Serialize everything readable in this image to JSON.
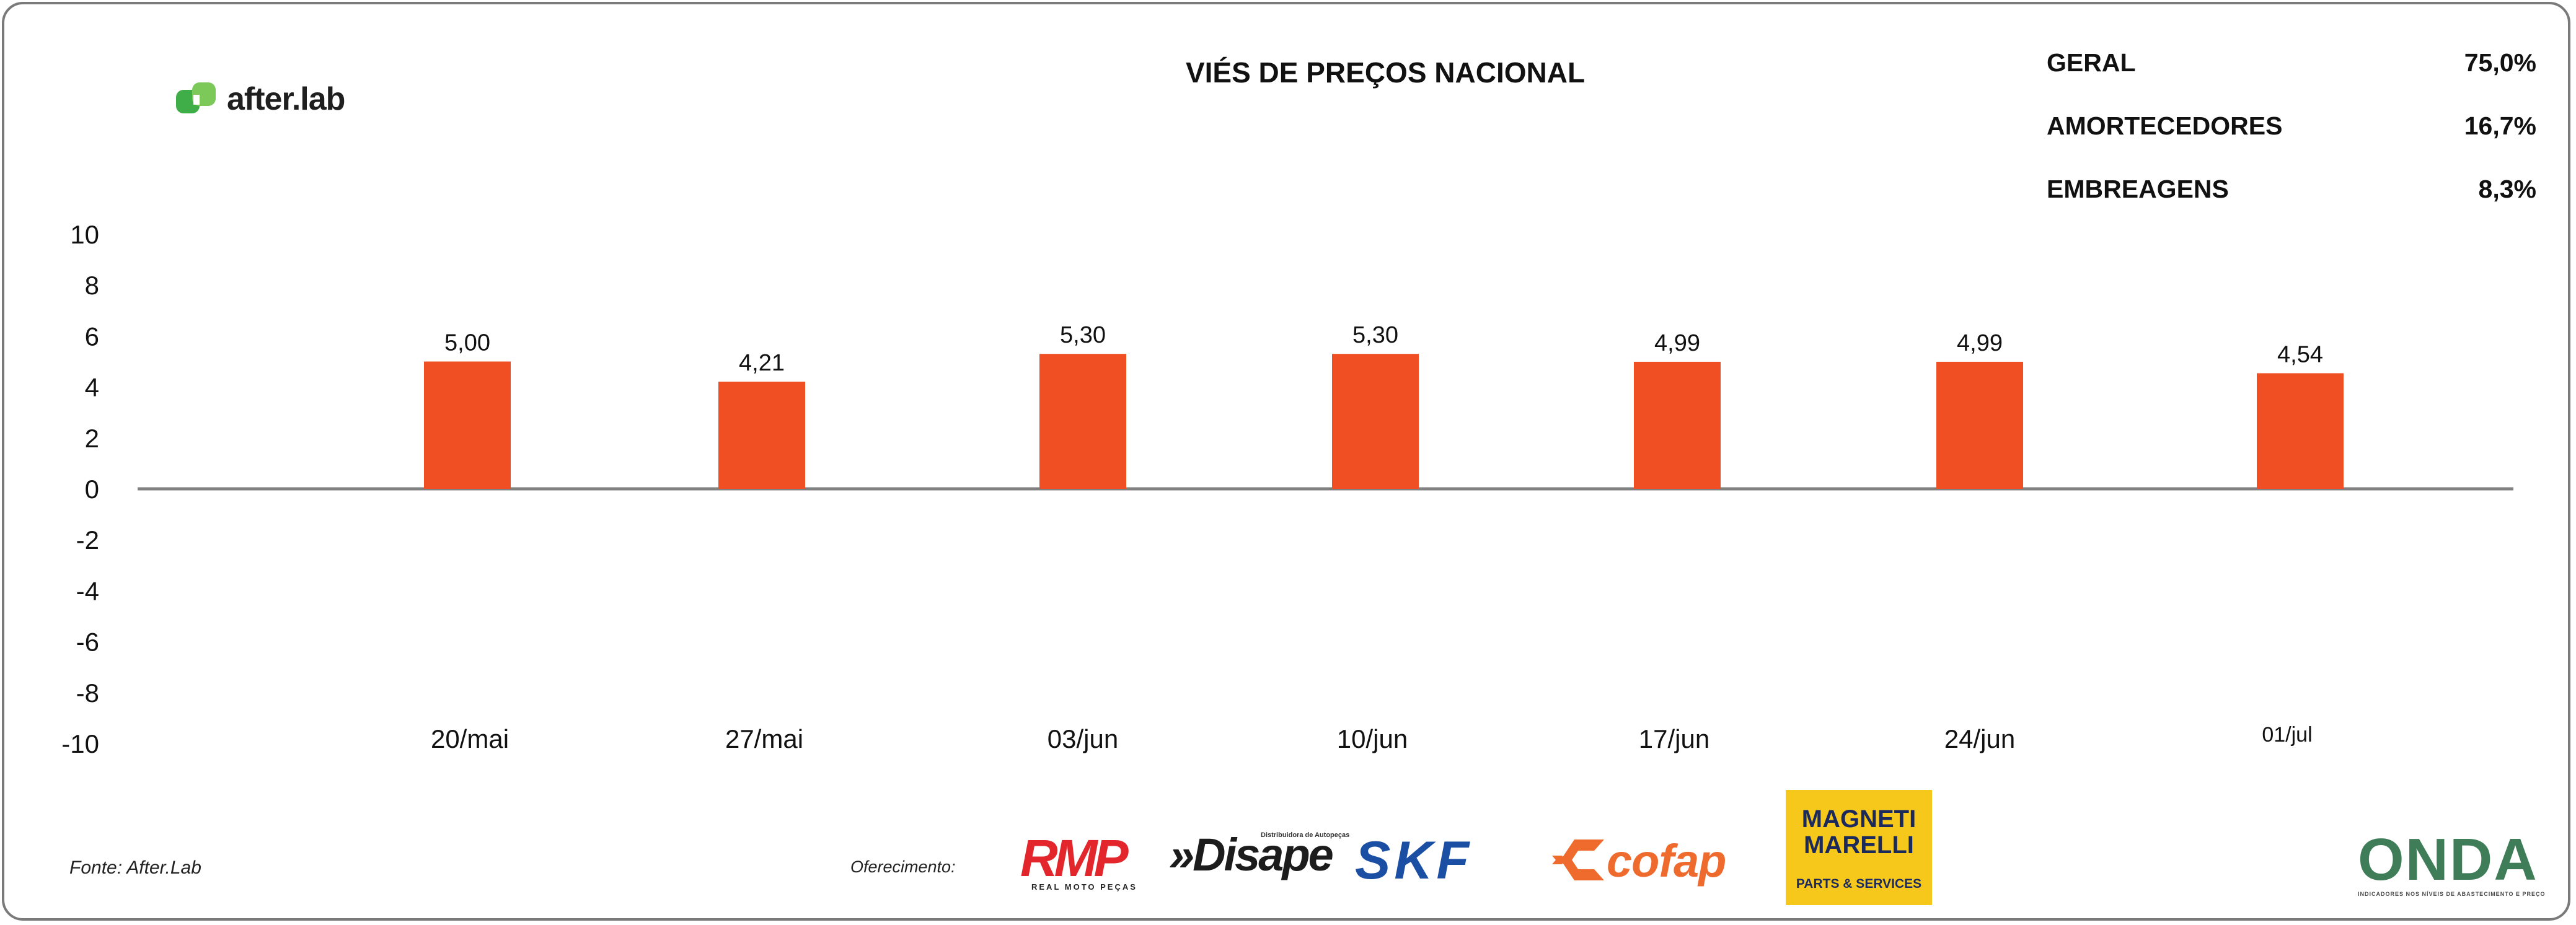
{
  "logo": {
    "name": "after.lab"
  },
  "summary": [
    {
      "label": "GERAL",
      "value": "75,0%"
    },
    {
      "label": "AMORTECEDORES",
      "value": "16,7%"
    },
    {
      "label": "EMBREAGENS",
      "value": "8,3%"
    }
  ],
  "chart_data": {
    "type": "bar",
    "title": "VIÉS DE PREÇOS NACIONAL",
    "categories": [
      "20/mai",
      "27/mai",
      "03/jun",
      "10/jun",
      "17/jun",
      "24/jun",
      "01/jul"
    ],
    "values": [
      5.0,
      4.21,
      5.3,
      5.3,
      4.99,
      4.99,
      4.54
    ],
    "value_labels": [
      "5,00",
      "4,21",
      "5,30",
      "5,30",
      "4,99",
      "4,99",
      "4,54"
    ],
    "yticks": [
      "10",
      "8",
      "6",
      "4",
      "2",
      "0",
      "-2",
      "-4",
      "-6",
      "-8",
      "-10"
    ],
    "ylim": [
      -10,
      10
    ],
    "bar_color": "#f04e23",
    "axis_color": "#808080",
    "grid": false,
    "legend": "none"
  },
  "footer": {
    "source": "Fonte: After.Lab",
    "sponsor_label": "Oferecimento:",
    "sponsors": {
      "rmp": {
        "name": "RMP",
        "tagline": "REAL MOTO PEÇAS"
      },
      "disape": {
        "name": "»Disape",
        "tagline": "Distribuidora de Autopeças"
      },
      "skf": {
        "name": "SKF"
      },
      "cofap": {
        "name": "cofap"
      },
      "magneti": {
        "name": "MAGNETI MARELLI",
        "tagline": "PARTS & SERVICES"
      },
      "onda": {
        "name": "ONDA",
        "tagline": "INDICADORES NOS NÍVEIS DE ABASTECIMENTO E PREÇO"
      }
    }
  }
}
